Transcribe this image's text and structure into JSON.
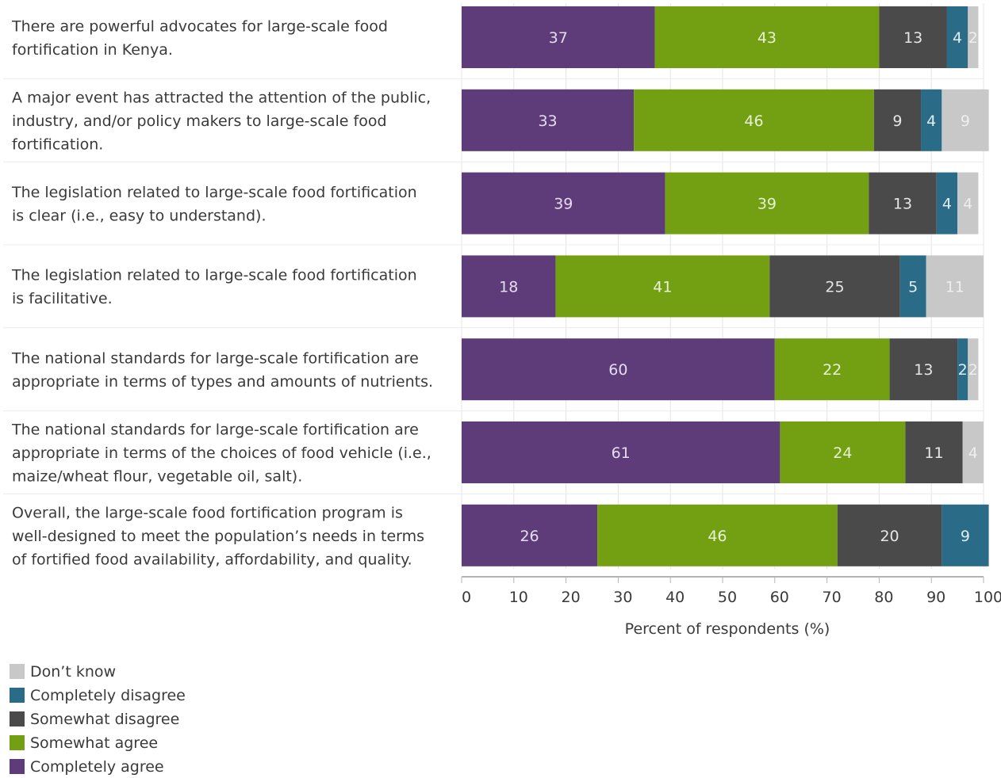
{
  "chart_data": {
    "type": "bar",
    "orientation": "horizontal-stacked",
    "categories": [
      "There are powerful advocates for large-scale food fortification in Kenya.",
      "A major event has attracted the attention of the public, industry, and/or policy makers to large-scale food fortification.",
      "The legislation related to large-scale food fortification is clear (i.e., easy to understand).",
      "The legislation related to large-scale food fortification is facilitative.",
      "The national standards for large-scale fortification are appropriate in terms of types and amounts of nutrients.",
      "The national standards for large-scale fortification are appropriate in terms of the choices of food vehicle (i.e., maize/wheat flour, vegetable oil, salt).",
      "Overall, the large-scale food fortification program is well-designed to meet the population’s needs in terms of fortified food availability, affordability, and quality."
    ],
    "category_lines": [
      [
        "There are powerful advocates for large-scale food",
        "fortification in Kenya."
      ],
      [
        "A major event has attracted the attention of the public,",
        "industry, and/or policy makers to large-scale food",
        "fortification."
      ],
      [
        "The legislation related to large-scale food fortification",
        "is clear (i.e., easy to understand)."
      ],
      [
        "The legislation related to large-scale food fortification",
        "is facilitative."
      ],
      [
        "The national standards for large-scale fortification are",
        "appropriate in terms of types and amounts of nutrients."
      ],
      [
        "The national standards for large-scale fortification are",
        "appropriate in terms of the choices of food vehicle (i.e.,",
        "maize/wheat flour, vegetable oil, salt)."
      ],
      [
        "Overall, the large-scale food fortification program is",
        "well-designed to meet the population’s needs in terms",
        "of fortified food availability, affordability, and quality."
      ]
    ],
    "series": [
      {
        "name": "Completely agree",
        "color": "#5e3c7a",
        "label_color": "#e6dcef",
        "values": [
          37,
          33,
          39,
          18,
          60,
          61,
          26
        ]
      },
      {
        "name": "Somewhat agree",
        "color": "#73a012",
        "label_color": "#e8f2d4",
        "values": [
          43,
          46,
          39,
          41,
          22,
          24,
          46
        ]
      },
      {
        "name": "Somewhat disagree",
        "color": "#4a4a4a",
        "label_color": "#e6e6e6",
        "values": [
          13,
          9,
          13,
          25,
          13,
          11,
          20
        ]
      },
      {
        "name": "Completely disagree",
        "color": "#2a6b88",
        "label_color": "#e0edf3",
        "values": [
          4,
          4,
          4,
          5,
          2,
          0,
          9
        ]
      },
      {
        "name": "Don’t know",
        "color": "#c8c8c8",
        "label_color": "#eeeeee",
        "values": [
          2,
          9,
          4,
          11,
          2,
          4,
          0
        ]
      }
    ],
    "legend_order": [
      "Don’t know",
      "Completely disagree",
      "Somewhat disagree",
      "Somewhat agree",
      "Completely agree"
    ],
    "xlabel": "Percent of respondents (%)",
    "xticks": [
      0,
      10,
      20,
      30,
      40,
      50,
      60,
      70,
      80,
      90,
      100
    ],
    "xlim": [
      0,
      100
    ],
    "grid": true,
    "legend_position": "bottom-left"
  }
}
